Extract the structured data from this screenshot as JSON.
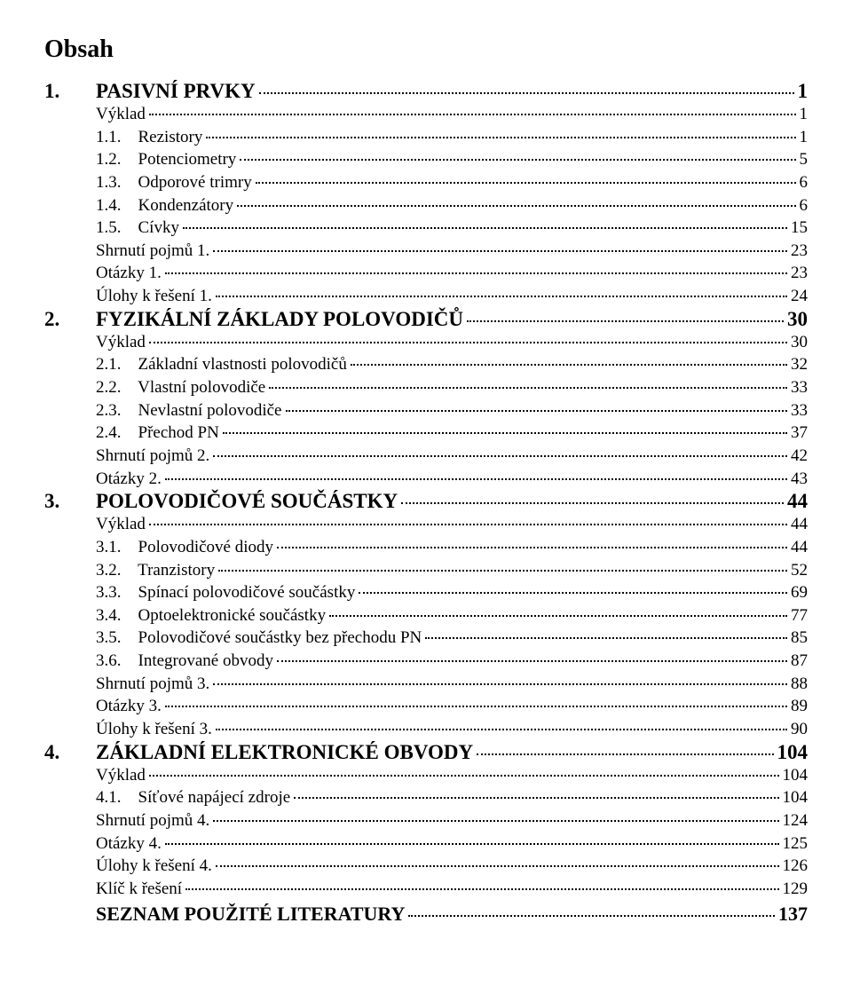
{
  "title": "Obsah",
  "colors": {
    "text": "#000000",
    "background": "#ffffff"
  },
  "fonts": {
    "family": "Times New Roman",
    "title_size_pt": 21,
    "chapter_size_pt": 17,
    "entry_size_pt": 14
  },
  "toc": [
    {
      "type": "chapter",
      "num": "1.",
      "label": "PASIVNÍ PRVKY",
      "page": "1"
    },
    {
      "type": "sec",
      "label": "Výklad",
      "page": "1"
    },
    {
      "type": "sub",
      "label": "1.1.    Rezistory",
      "page": "1"
    },
    {
      "type": "sub",
      "label": "1.2.    Potenciometry",
      "page": "5"
    },
    {
      "type": "sub",
      "label": "1.3.    Odporové trimry",
      "page": "6"
    },
    {
      "type": "sub",
      "label": "1.4.    Kondenzátory",
      "page": "6"
    },
    {
      "type": "sub",
      "label": "1.5.    Cívky",
      "page": "15"
    },
    {
      "type": "sec",
      "label": "Shrnutí pojmů 1.",
      "page": "23"
    },
    {
      "type": "sec",
      "label": "Otázky 1.",
      "page": "23"
    },
    {
      "type": "sec",
      "label": "Úlohy k řešení 1.",
      "page": "24"
    },
    {
      "type": "chapter",
      "num": "2.",
      "label": "FYZIKÁLNÍ ZÁKLADY POLOVODIČŮ",
      "page": "30"
    },
    {
      "type": "sec",
      "label": "Výklad",
      "page": "30"
    },
    {
      "type": "sub",
      "label": "2.1.    Základní vlastnosti polovodičů",
      "page": "32"
    },
    {
      "type": "sub",
      "label": "2.2.    Vlastní polovodiče",
      "page": "33"
    },
    {
      "type": "sub",
      "label": "2.3.    Nevlastní polovodiče",
      "page": "33"
    },
    {
      "type": "sub",
      "label": "2.4.    Přechod PN",
      "page": "37"
    },
    {
      "type": "sec",
      "label": "Shrnutí pojmů 2.",
      "page": "42"
    },
    {
      "type": "sec",
      "label": "Otázky 2.",
      "page": "43"
    },
    {
      "type": "chapter",
      "num": "3.",
      "label": "POLOVODIČOVÉ SOUČÁSTKY",
      "page": "44"
    },
    {
      "type": "sec",
      "label": "Výklad",
      "page": "44"
    },
    {
      "type": "sub",
      "label": "3.1.    Polovodičové diody",
      "page": "44"
    },
    {
      "type": "sub",
      "label": "3.2.    Tranzistory",
      "page": "52"
    },
    {
      "type": "sub",
      "label": "3.3.    Spínací polovodičové součástky",
      "page": "69"
    },
    {
      "type": "sub",
      "label": "3.4.    Optoelektronické součástky",
      "page": "77"
    },
    {
      "type": "sub",
      "label": "3.5.    Polovodičové součástky bez přechodu PN",
      "page": "85"
    },
    {
      "type": "sub",
      "label": "3.6.    Integrované obvody",
      "page": "87"
    },
    {
      "type": "sec",
      "label": "Shrnutí pojmů 3.",
      "page": "88"
    },
    {
      "type": "sec",
      "label": "Otázky 3.",
      "page": "89"
    },
    {
      "type": "sec",
      "label": "Úlohy k řešení 3.",
      "page": "90"
    },
    {
      "type": "chapter",
      "num": "4.",
      "label": "ZÁKLADNÍ ELEKTRONICKÉ OBVODY",
      "page": "104"
    },
    {
      "type": "sec",
      "label": "Výklad",
      "page": "104"
    },
    {
      "type": "sub",
      "label": "4.1.    Síťové napájecí zdroje",
      "page": "104"
    },
    {
      "type": "sec",
      "label": "Shrnutí pojmů 4.",
      "page": "124"
    },
    {
      "type": "sec",
      "label": "Otázky 4.",
      "page": "125"
    },
    {
      "type": "sec",
      "label": "Úlohy k řešení 4.",
      "page": "126"
    },
    {
      "type": "sec",
      "label": "Klíč k řešení",
      "page": "129"
    },
    {
      "type": "literature",
      "label": "SEZNAM POUŽITÉ LITERATURY",
      "page": "137"
    }
  ]
}
